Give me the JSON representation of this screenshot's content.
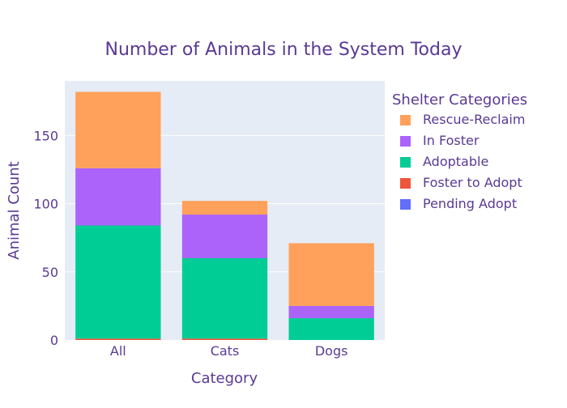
{
  "chart_data": {
    "type": "bar",
    "stacked": true,
    "title": "Number of Animals in the System Today",
    "xlabel": "Category",
    "ylabel": "Animal Count",
    "categories": [
      "All",
      "Cats",
      "Dogs"
    ],
    "ylim": [
      0,
      190
    ],
    "yticks": [
      0,
      50,
      100,
      150
    ],
    "grid": true,
    "legend": {
      "title": "Shelter Categories",
      "position": "right"
    },
    "series": [
      {
        "name": "Pending Adopt",
        "values": [
          0,
          0,
          0
        ],
        "color": "#636efa"
      },
      {
        "name": "Foster to Adopt",
        "values": [
          1,
          1,
          0
        ],
        "color": "#ef553b"
      },
      {
        "name": "Adoptable",
        "values": [
          83,
          59,
          16
        ],
        "color": "#00cc96"
      },
      {
        "name": "In Foster",
        "values": [
          42,
          32,
          9
        ],
        "color": "#ab63fa"
      },
      {
        "name": "Rescue-Reclaim",
        "values": [
          56,
          10,
          46
        ],
        "color": "#ffa15a"
      }
    ],
    "colors": {
      "text": "#5a3a93",
      "plot_bg": "#e5ecf6",
      "grid": "#ffffff"
    }
  }
}
